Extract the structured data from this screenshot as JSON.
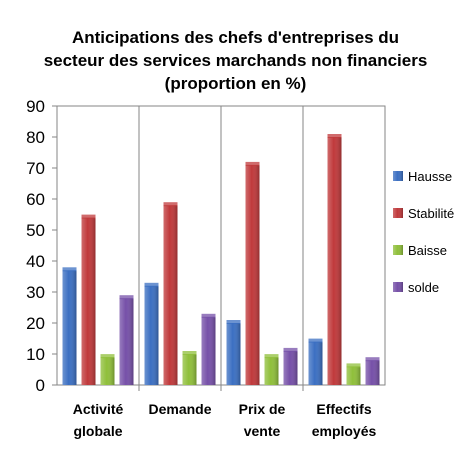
{
  "title_lines": [
    "Anticipations des chefs d'entreprises du",
    "secteur des services marchands non financiers",
    "(proportion en %)"
  ],
  "chart_data": {
    "type": "bar",
    "title": "Anticipations des chefs d'entreprises du secteur des services marchands non financiers (proportion en %)",
    "categories": [
      [
        "Activité",
        "globale"
      ],
      [
        "Demande"
      ],
      [
        "Prix de",
        "vente"
      ],
      [
        "Effectifs",
        "employés"
      ]
    ],
    "series": [
      {
        "name": "Hausse",
        "color": "#3b6fc2",
        "values": [
          37,
          32,
          20,
          14
        ]
      },
      {
        "name": "Stabilité",
        "color": "#c0393b",
        "values": [
          54,
          58,
          71,
          80
        ]
      },
      {
        "name": "Baisse",
        "color": "#8fbf3a",
        "values": [
          9,
          10,
          9,
          6
        ]
      },
      {
        "name": "solde",
        "color": "#7650a8",
        "values": [
          28,
          22,
          11,
          8
        ]
      }
    ],
    "yticks": [
      0,
      10,
      20,
      30,
      40,
      50,
      60,
      70,
      80,
      90
    ],
    "ylim": [
      0,
      90
    ],
    "xlabel": "",
    "ylabel": "",
    "grid": false,
    "legend_position": "right"
  }
}
